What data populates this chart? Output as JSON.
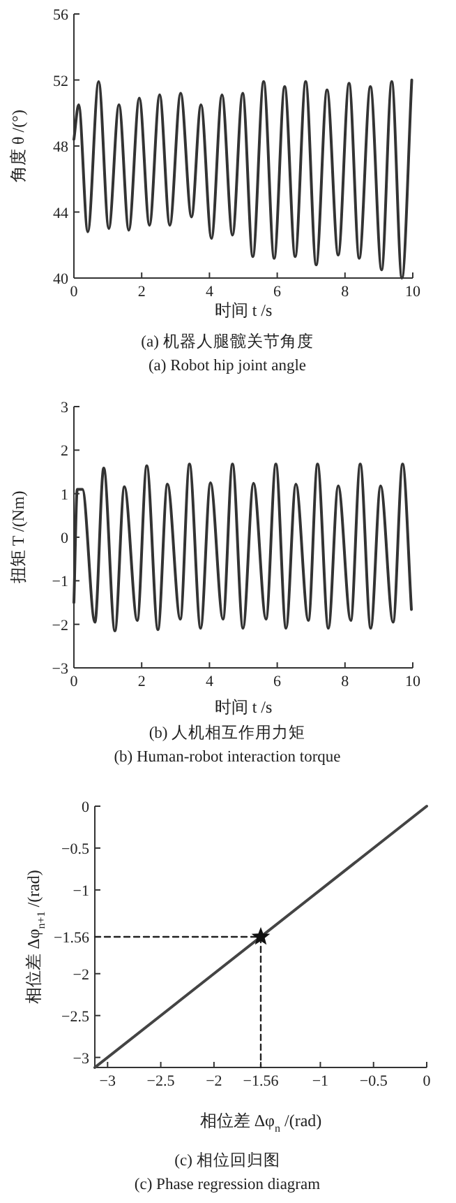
{
  "chart_data": [
    {
      "type": "line",
      "xlabel": "时间  t /s",
      "ylabel": "角度 θ /(°)",
      "xlim": [
        0,
        10
      ],
      "ylim": [
        40,
        56
      ],
      "xticks": [
        0,
        2,
        4,
        6,
        8,
        10
      ],
      "yticks": [
        40,
        44,
        48,
        52,
        56
      ],
      "grid": false,
      "color": "#333333",
      "x": [
        0,
        0.14,
        0.41,
        0.73,
        1.03,
        1.33,
        1.62,
        1.93,
        2.23,
        2.53,
        2.83,
        3.15,
        3.47,
        3.75,
        4.06,
        4.37,
        4.68,
        4.98,
        5.28,
        5.6,
        5.91,
        6.22,
        6.53,
        6.84,
        7.15,
        7.47,
        7.8,
        8.12,
        8.42,
        8.75,
        9.08,
        9.38,
        9.68,
        9.97
      ],
      "values": [
        48.4,
        50.5,
        42.8,
        51.9,
        43.0,
        50.5,
        42.9,
        50.9,
        43.2,
        51.1,
        43.2,
        51.2,
        43.7,
        50.5,
        42.4,
        51.1,
        42.6,
        51.2,
        41.3,
        51.9,
        41.2,
        51.6,
        41.3,
        51.9,
        40.8,
        51.4,
        41.4,
        51.8,
        41.2,
        51.6,
        40.5,
        51.9,
        40.0,
        52.0
      ],
      "annotations": [
        "(a) 机器人腿髋关节角度",
        "(a) Robot hip joint angle"
      ]
    },
    {
      "type": "line",
      "xlabel": "时间  t /s",
      "ylabel": "扭矩 T /(Nm)",
      "xlim": [
        0,
        10
      ],
      "ylim": [
        -3,
        3
      ],
      "xticks": [
        0,
        2,
        4,
        6,
        8,
        10
      ],
      "yticks": [
        -3,
        -2,
        -1,
        0,
        1,
        2,
        3
      ],
      "grid": false,
      "color": "#333333",
      "x": [
        0,
        0.1,
        0.25,
        0.62,
        0.88,
        1.21,
        1.49,
        1.87,
        2.15,
        2.48,
        2.76,
        3.14,
        3.41,
        3.74,
        4.03,
        4.4,
        4.68,
        4.99,
        5.3,
        5.67,
        5.96,
        6.26,
        6.55,
        6.92,
        7.19,
        7.51,
        7.8,
        8.17,
        8.45,
        8.76,
        9.05,
        9.42,
        9.7,
        9.96
      ],
      "values": [
        -1.5,
        1.1,
        1.1,
        -1.95,
        1.59,
        -2.15,
        1.16,
        -1.91,
        1.64,
        -2.12,
        1.22,
        -1.88,
        1.68,
        -2.09,
        1.25,
        -1.88,
        1.68,
        -2.09,
        1.24,
        -1.88,
        1.68,
        -2.09,
        1.22,
        -1.91,
        1.68,
        -2.09,
        1.18,
        -1.91,
        1.68,
        -2.09,
        1.18,
        -1.95,
        1.68,
        -1.66
      ],
      "annotations": [
        "(b) 人机相互作用力矩",
        "(b) Human-robot interaction torque"
      ]
    },
    {
      "type": "line",
      "xlabel": "相位差 Δφ$_{n}$ /(rad)",
      "ylabel": "相位差 Δφ$_{n+1}$ /(rad)",
      "xlim": [
        -3.12,
        0
      ],
      "ylim": [
        -3.12,
        0
      ],
      "grid": false,
      "xticks": [
        -3,
        -2.5,
        -2,
        -1.56,
        -1,
        -0.5,
        0
      ],
      "yticks": [
        -3,
        -2.5,
        -2,
        -1.56,
        -1,
        -0.5,
        0
      ],
      "series": [
        {
          "type": "line",
          "color": "#444444",
          "x": [
            -3.12,
            0
          ],
          "values": [
            -3.12,
            0
          ]
        },
        {
          "type": "line",
          "color": "#222222",
          "line_style": "dashed",
          "x": [
            -3.12,
            -1.56
          ],
          "values": [
            -1.56,
            -1.56
          ]
        },
        {
          "type": "line",
          "color": "#222222",
          "line_style": "dashed",
          "x": [
            -1.56,
            -1.56
          ],
          "values": [
            -1.56,
            -3.12
          ]
        },
        {
          "type": "scatter",
          "color": "#111111",
          "marker": "star",
          "x": [
            -1.56
          ],
          "values": [
            -1.56
          ]
        }
      ],
      "annotations": [
        "(c) 相位回归图",
        "(c) Phase regression diagram"
      ]
    }
  ]
}
